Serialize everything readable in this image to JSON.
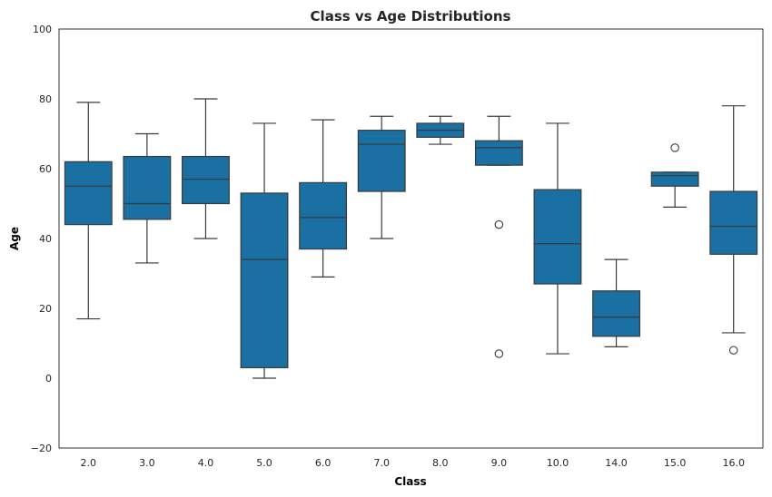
{
  "chart_data": {
    "type": "box",
    "title": "Class vs Age Distributions",
    "xlabel": "Class",
    "ylabel": "Age",
    "ylim": [
      -20,
      100
    ],
    "yticks": [
      -20,
      0,
      20,
      40,
      60,
      80,
      100
    ],
    "grid": false,
    "box_color": "#1a6fa3",
    "line_color": "#3a3a3a",
    "categories": [
      "2.0",
      "3.0",
      "4.0",
      "5.0",
      "6.0",
      "7.0",
      "8.0",
      "9.0",
      "10.0",
      "14.0",
      "15.0",
      "16.0"
    ],
    "boxes": [
      {
        "whisker_low": 17,
        "q1": 44,
        "median": 55,
        "q3": 62,
        "whisker_high": 79,
        "outliers": []
      },
      {
        "whisker_low": 33,
        "q1": 45.5,
        "median": 50,
        "q3": 63.5,
        "whisker_high": 70,
        "outliers": []
      },
      {
        "whisker_low": 40,
        "q1": 50,
        "median": 57,
        "q3": 63.5,
        "whisker_high": 80,
        "outliers": []
      },
      {
        "whisker_low": 0,
        "q1": 3,
        "median": 34,
        "q3": 53,
        "whisker_high": 73,
        "outliers": []
      },
      {
        "whisker_low": 29,
        "q1": 37,
        "median": 46,
        "q3": 56,
        "whisker_high": 74,
        "outliers": []
      },
      {
        "whisker_low": 40,
        "q1": 53.5,
        "median": 67,
        "q3": 71,
        "whisker_high": 75,
        "outliers": []
      },
      {
        "whisker_low": 67,
        "q1": 69,
        "median": 71,
        "q3": 73,
        "whisker_high": 75,
        "outliers": []
      },
      {
        "whisker_low": 61,
        "q1": 61,
        "median": 66,
        "q3": 68,
        "whisker_high": 75,
        "outliers": [
          44,
          7
        ]
      },
      {
        "whisker_low": 7,
        "q1": 27,
        "median": 38.5,
        "q3": 54,
        "whisker_high": 73,
        "outliers": []
      },
      {
        "whisker_low": 9,
        "q1": 12,
        "median": 17.5,
        "q3": 25,
        "whisker_high": 34,
        "outliers": []
      },
      {
        "whisker_low": 49,
        "q1": 55,
        "median": 58,
        "q3": 59,
        "whisker_high": 59,
        "outliers": [
          66
        ]
      },
      {
        "whisker_low": 13,
        "q1": 35.5,
        "median": 43.5,
        "q3": 53.5,
        "whisker_high": 78,
        "outliers": [
          8
        ]
      }
    ]
  }
}
